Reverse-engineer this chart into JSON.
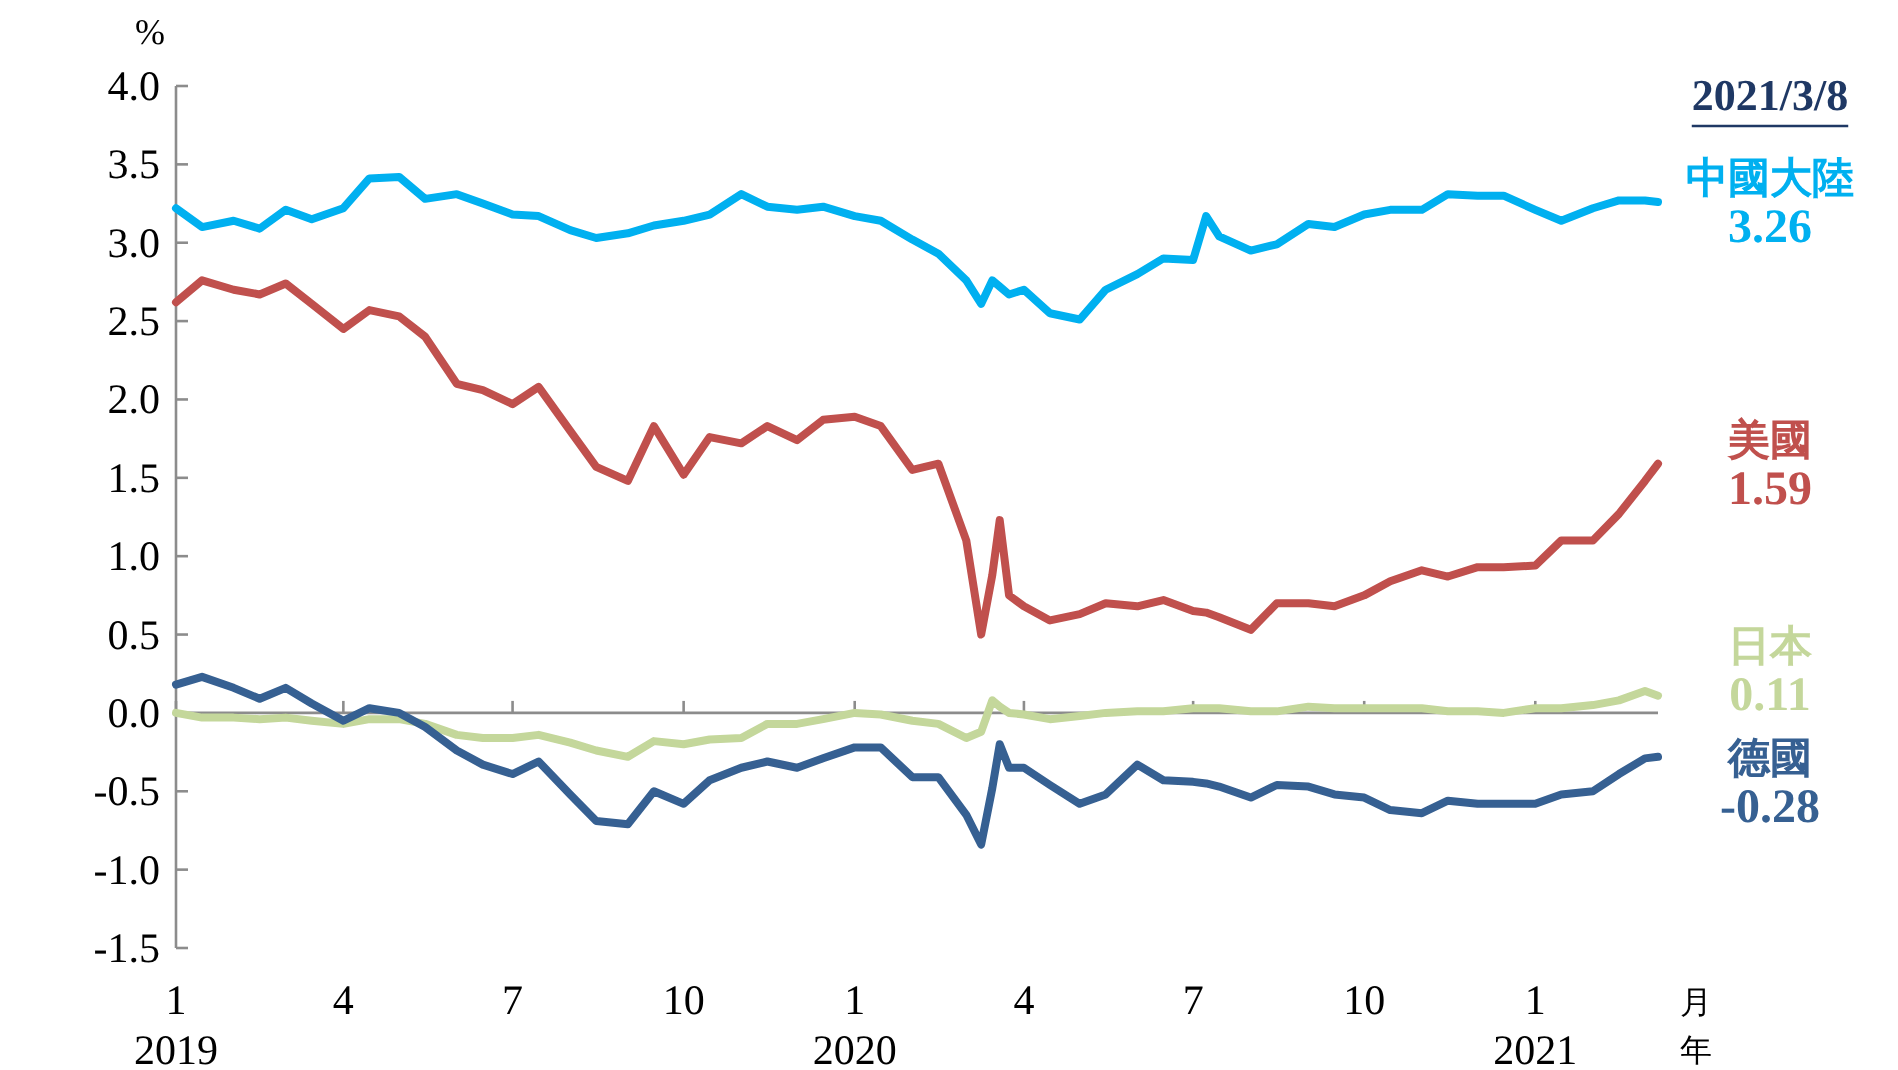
{
  "chart_data": {
    "type": "line",
    "title": "2021/3/8",
    "ylabel": "%",
    "xlabel": "月年",
    "x": [
      "2019-01-01",
      "2019-01-15",
      "2019-02-01",
      "2019-02-15",
      "2019-03-01",
      "2019-03-15",
      "2019-04-01",
      "2019-04-15",
      "2019-05-01",
      "2019-05-15",
      "2019-06-01",
      "2019-06-15",
      "2019-07-01",
      "2019-07-15",
      "2019-08-01",
      "2019-08-15",
      "2019-09-01",
      "2019-09-15",
      "2019-10-01",
      "2019-10-15",
      "2019-11-01",
      "2019-11-15",
      "2019-12-01",
      "2019-12-15",
      "2020-01-01",
      "2020-01-15",
      "2020-02-01",
      "2020-02-15",
      "2020-03-01",
      "2020-03-09",
      "2020-03-15",
      "2020-03-19",
      "2020-03-24",
      "2020-04-01",
      "2020-04-15",
      "2020-05-01",
      "2020-05-15",
      "2020-06-01",
      "2020-06-15",
      "2020-07-01",
      "2020-07-08",
      "2020-07-15",
      "2020-08-01",
      "2020-08-15",
      "2020-09-01",
      "2020-09-15",
      "2020-10-01",
      "2020-10-15",
      "2020-11-01",
      "2020-11-15",
      "2020-12-01",
      "2020-12-15",
      "2021-01-01",
      "2021-01-15",
      "2021-02-01",
      "2021-02-15",
      "2021-03-01",
      "2021-03-08"
    ],
    "xlim": [
      "2019-01-01",
      "2021-03-08"
    ],
    "xticks": [
      {
        "value": "2019-01-01",
        "label": "1\n2019"
      },
      {
        "value": "2019-04-01",
        "label": "4"
      },
      {
        "value": "2019-07-01",
        "label": "7"
      },
      {
        "value": "2019-10-01",
        "label": "10"
      },
      {
        "value": "2020-01-01",
        "label": "1\n2020"
      },
      {
        "value": "2020-04-01",
        "label": "4"
      },
      {
        "value": "2020-07-01",
        "label": "7"
      },
      {
        "value": "2020-10-01",
        "label": "10"
      },
      {
        "value": "2021-01-01",
        "label": "1\n2021"
      }
    ],
    "ylim": [
      -1.5,
      4.0
    ],
    "yticks": [
      {
        "value": 4,
        "label": "4.0"
      },
      3.5,
      {
        "value": 3,
        "label": "3.0"
      },
      2.5,
      {
        "value": 2,
        "label": "2.0"
      },
      1.5,
      {
        "value": 1,
        "label": "1.0"
      },
      0.5,
      {
        "value": 0,
        "label": "0.0"
      },
      -0.5,
      {
        "value": -1,
        "label": "-1.0"
      },
      -1.5
    ],
    "series": [
      {
        "name": "中國大陸",
        "color": "#00b0f0",
        "values": [
          3.22,
          3.1,
          3.14,
          3.09,
          3.21,
          3.15,
          3.22,
          3.41,
          3.42,
          3.28,
          3.31,
          3.25,
          3.18,
          3.17,
          3.08,
          3.03,
          3.06,
          3.11,
          3.14,
          3.18,
          3.31,
          3.23,
          3.21,
          3.23,
          3.17,
          3.14,
          3.02,
          2.93,
          2.76,
          2.61,
          2.76,
          2.72,
          2.67,
          2.7,
          2.55,
          2.51,
          2.7,
          2.8,
          2.9,
          2.89,
          3.17,
          3.04,
          2.95,
          2.99,
          3.12,
          3.1,
          3.18,
          3.21,
          3.21,
          3.31,
          3.3,
          3.3,
          3.21,
          3.14,
          3.22,
          3.27,
          3.27,
          3.26
        ]
      },
      {
        "name": "美國",
        "color": "#c0504d",
        "values": [
          2.62,
          2.76,
          2.7,
          2.67,
          2.74,
          2.61,
          2.45,
          2.57,
          2.53,
          2.4,
          2.1,
          2.06,
          1.97,
          2.08,
          1.8,
          1.57,
          1.48,
          1.83,
          1.52,
          1.76,
          1.72,
          1.83,
          1.74,
          1.87,
          1.89,
          1.83,
          1.55,
          1.59,
          1.1,
          0.5,
          0.88,
          1.23,
          0.75,
          0.68,
          0.59,
          0.63,
          0.7,
          0.68,
          0.72,
          0.65,
          0.64,
          0.61,
          0.53,
          0.7,
          0.7,
          0.68,
          0.75,
          0.84,
          0.91,
          0.87,
          0.93,
          0.93,
          0.94,
          1.1,
          1.1,
          1.27,
          1.48,
          1.59
        ]
      },
      {
        "name": "日本",
        "color": "#c4d79b",
        "values": [
          0.0,
          -0.03,
          -0.03,
          -0.04,
          -0.03,
          -0.05,
          -0.07,
          -0.04,
          -0.04,
          -0.07,
          -0.14,
          -0.16,
          -0.16,
          -0.14,
          -0.19,
          -0.24,
          -0.28,
          -0.18,
          -0.2,
          -0.17,
          -0.16,
          -0.07,
          -0.07,
          -0.04,
          0.0,
          -0.01,
          -0.05,
          -0.07,
          -0.16,
          -0.12,
          0.08,
          0.04,
          0.0,
          -0.01,
          -0.04,
          -0.02,
          0.0,
          0.01,
          0.01,
          0.03,
          0.03,
          0.03,
          0.01,
          0.01,
          0.04,
          0.03,
          0.03,
          0.03,
          0.03,
          0.01,
          0.01,
          0.0,
          0.03,
          0.03,
          0.05,
          0.08,
          0.14,
          0.11
        ]
      },
      {
        "name": "德國",
        "color": "#366092",
        "values": [
          0.18,
          0.23,
          0.16,
          0.09,
          0.16,
          0.06,
          -0.05,
          0.03,
          0.0,
          -0.09,
          -0.24,
          -0.33,
          -0.39,
          -0.31,
          -0.52,
          -0.69,
          -0.71,
          -0.5,
          -0.58,
          -0.43,
          -0.35,
          -0.31,
          -0.35,
          -0.29,
          -0.22,
          -0.22,
          -0.41,
          -0.41,
          -0.65,
          -0.84,
          -0.48,
          -0.2,
          -0.35,
          -0.35,
          -0.46,
          -0.58,
          -0.52,
          -0.33,
          -0.43,
          -0.44,
          -0.45,
          -0.47,
          -0.54,
          -0.46,
          -0.47,
          -0.52,
          -0.54,
          -0.62,
          -0.64,
          -0.56,
          -0.58,
          -0.58,
          -0.58,
          -0.52,
          -0.5,
          -0.39,
          -0.29,
          -0.28
        ]
      }
    ],
    "annotations": [
      {
        "text": "3.26",
        "x": "2021-03-08",
        "y": 3.26
      },
      {
        "text": "1.59",
        "x": "2021-03-08",
        "y": 1.59
      },
      {
        "text": "0.11",
        "x": "2021-03-08",
        "y": 0.11
      },
      {
        "text": "-0.28",
        "x": "2021-03-08",
        "y": -0.28
      }
    ]
  }
}
